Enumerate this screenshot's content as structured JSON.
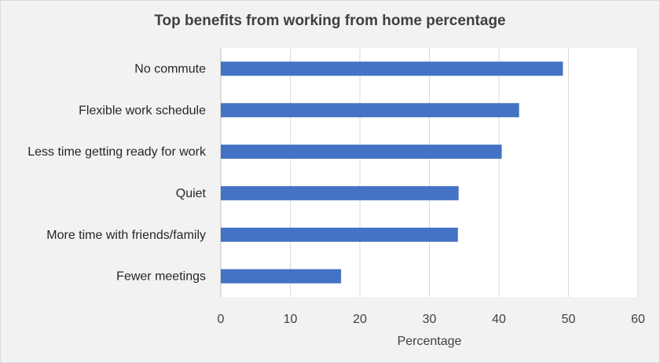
{
  "chart_data": {
    "type": "bar",
    "orientation": "horizontal",
    "title": "Top benefits from working from home percentage",
    "xlabel": "Percentage",
    "ylabel": "",
    "xlim": [
      0,
      60
    ],
    "x_ticks": [
      "0",
      "10",
      "20",
      "30",
      "40",
      "50",
      "60"
    ],
    "grid": "vertical",
    "legend": "none",
    "bar_color": "#4472c4",
    "grid_color": "#d9d9d9",
    "background_color": "#f2f2f2",
    "categories": [
      "No commute",
      "Flexible work schedule",
      "Less time getting ready for work",
      "Quiet",
      "More time with friends/family",
      "Fewer meetings"
    ],
    "values": [
      49.2,
      42.9,
      40.4,
      34.2,
      34.1,
      17.3
    ]
  }
}
